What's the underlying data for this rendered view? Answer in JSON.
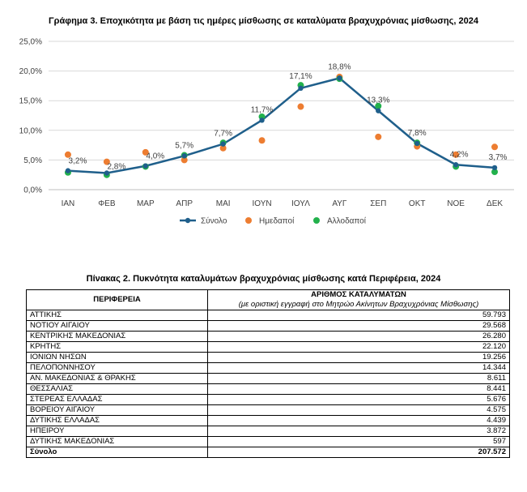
{
  "chart_title": "Γράφημα 3. Εποχικότητα με βάση τις ημέρες μίσθωσης σε καταλύματα βραχυχρόνιας μίσθωσης, 2024",
  "chart_data": {
    "type": "line",
    "categories": [
      "ΙΑΝ",
      "ΦΕΒ",
      "ΜΑΡ",
      "ΑΠΡ",
      "ΜΑΙ",
      "ΙΟΥΝ",
      "ΙΟΥΛ",
      "ΑΥΓ",
      "ΣΕΠ",
      "ΟΚΤ",
      "ΝΟΕ",
      "ΔΕΚ"
    ],
    "ylim": [
      0,
      25
    ],
    "yticks": [
      "0,0%",
      "5,0%",
      "10,0%",
      "15,0%",
      "20,0%",
      "25,0%"
    ],
    "ytick_values": [
      0,
      5,
      10,
      15,
      20,
      25
    ],
    "series": [
      {
        "name": "Σύνολο",
        "type": "line",
        "color": "#1f5f8b",
        "values": [
          3.2,
          2.8,
          4.0,
          5.7,
          7.7,
          11.7,
          17.1,
          18.8,
          13.3,
          7.8,
          4.2,
          3.7
        ],
        "labels": [
          "3,2%",
          "2,8%",
          "4,0%",
          "5,7%",
          "7,7%",
          "11,7%",
          "17,1%",
          "18,8%",
          "13,3%",
          "7,8%",
          "4,2%",
          "3,7%"
        ]
      },
      {
        "name": "Ημεδαποί",
        "type": "scatter",
        "color": "#ed7d31",
        "values": [
          5.9,
          4.7,
          6.3,
          5.0,
          7.0,
          8.3,
          14.0,
          19.0,
          8.9,
          7.3,
          5.9,
          7.2
        ]
      },
      {
        "name": "Αλλοδαποί",
        "type": "scatter",
        "color": "#22b14c",
        "values": [
          2.9,
          2.5,
          3.9,
          5.8,
          7.9,
          12.3,
          17.6,
          18.7,
          14.1,
          7.9,
          3.9,
          3.0
        ]
      }
    ],
    "legend_position": "bottom",
    "grid": true
  },
  "table": {
    "title": "Πίνακας 2. Πυκνότητα καταλυμάτων βραχυχρόνιας μίσθωσης κατά Περιφέρεια, 2024",
    "header_region": "ΠΕΡΙΦΕΡΕΙΑ",
    "header_count": "ΑΡΙΘΜΟΣ ΚΑΤΑΛΥΜΑΤΩΝ",
    "header_count_sub": "(με οριστική εγγραφή στο Μητρώο Ακίνητων Βραχυχρόνιας Μίσθωσης)",
    "rows": [
      {
        "name": "ΑΤΤΙΚΗΣ",
        "value": "59.793"
      },
      {
        "name": "ΝΟΤΙΟΥ ΑΙΓΑΙΟΥ",
        "value": "29.568"
      },
      {
        "name": "ΚΕΝΤΡΙΚΗΣ ΜΑΚΕΔΟΝΙΑΣ",
        "value": "26.280"
      },
      {
        "name": "ΚΡΗΤΗΣ",
        "value": "22.120"
      },
      {
        "name": "ΙΟΝΙΩΝ ΝΗΣΩΝ",
        "value": "19.256"
      },
      {
        "name": "ΠΕΛΟΠΟΝΝΗΣΟΥ",
        "value": "14.344"
      },
      {
        "name": "ΑΝ. ΜΑΚΕΔΟΝΙΑΣ & ΘΡΑΚΗΣ",
        "value": "8.611"
      },
      {
        "name": "ΘΕΣΣΑΛΙΑΣ",
        "value": "8.441"
      },
      {
        "name": "ΣΤΕΡΕΑΣ ΕΛΛΑΔΑΣ",
        "value": "5.676"
      },
      {
        "name": "ΒΟΡΕΙΟΥ ΑΙΓΑΙΟΥ",
        "value": "4.575"
      },
      {
        "name": "ΔΥΤΙΚΗΣ ΕΛΛΑΔΑΣ",
        "value": "4.439"
      },
      {
        "name": "ΗΠΕΙΡΟΥ",
        "value": "3.872"
      },
      {
        "name": "ΔΥΤΙΚΗΣ ΜΑΚΕΔΟΝΙΑΣ",
        "value": "597"
      }
    ],
    "total_label": "Σύνολο",
    "total_value": "207.572"
  }
}
